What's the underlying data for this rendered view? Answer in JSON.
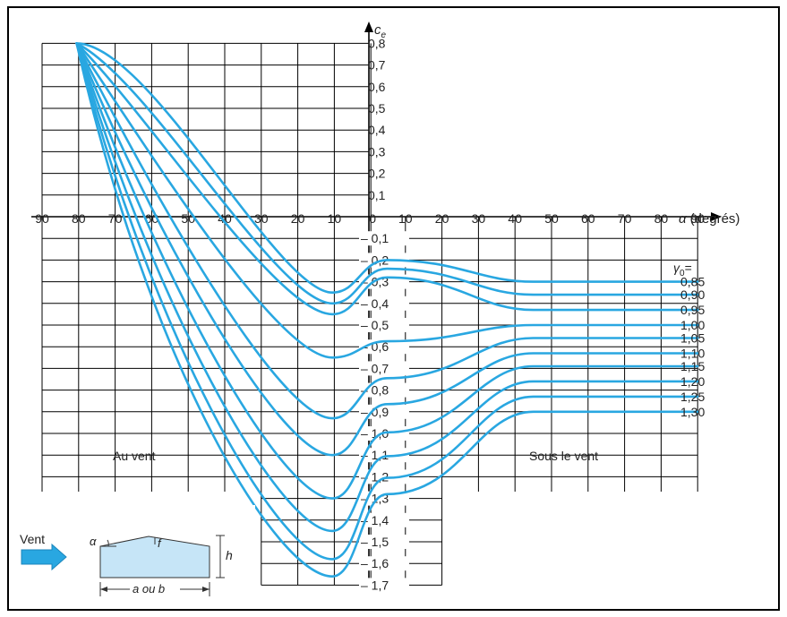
{
  "chart_data": {
    "type": "line",
    "title": "",
    "xlabel": "α (degrés)",
    "ylabel": "ce",
    "ylabel_main": "c",
    "ylabel_sub": "e",
    "xlabel_symbol": "α",
    "xlabel_unit": "(degrés)",
    "left_x_ticks": [
      "90",
      "80",
      "70",
      "60",
      "50",
      "40",
      "30",
      "20",
      "10",
      "0"
    ],
    "right_x_ticks": [
      "10",
      "20",
      "30",
      "40",
      "50",
      "60",
      "70",
      "80",
      "90"
    ],
    "pos_y_ticks": [
      "0,8",
      "0,7",
      "0,6",
      "0,5",
      "0,4",
      "0,3",
      "0,2",
      "0,1"
    ],
    "neg_y_ticks": [
      "– 0,1",
      "– 0,2",
      "– 0,3",
      "– 0,4",
      "– 0,5",
      "– 0,6",
      "– 0,7",
      "– 0,8",
      "– 0,9",
      "– 1,0",
      "– 1,1",
      "– 1,2",
      "– 1,3",
      "– 1,4",
      "– 1,5",
      "– 1,6",
      "– 1,7"
    ],
    "ylim": [
      -1.7,
      0.8
    ],
    "grid": true,
    "legend_title": "γ0 =",
    "legend_title_symbol": "γ",
    "legend_title_sub": "0",
    "legend_title_eq": "=",
    "au_vent_label": "Au vent",
    "sous_le_vent_label": "Sous le vent",
    "line_color": "#29a7e1",
    "series": [
      {
        "name": "0,85",
        "windward_min": -0.35,
        "leeward_plateau": -0.3
      },
      {
        "name": "0,90",
        "windward_min": -0.4,
        "leeward_plateau": -0.36
      },
      {
        "name": "0,95",
        "windward_min": -0.45,
        "leeward_plateau": -0.43
      },
      {
        "name": "1,00",
        "windward_min": -0.65,
        "leeward_plateau": -0.5
      },
      {
        "name": "1,05",
        "windward_min": -0.93,
        "leeward_plateau": -0.56
      },
      {
        "name": "1,10",
        "windward_min": -1.1,
        "leeward_plateau": -0.63
      },
      {
        "name": "1,15",
        "windward_min": -1.3,
        "leeward_plateau": -0.69
      },
      {
        "name": "1,20",
        "windward_min": -1.45,
        "leeward_plateau": -0.76
      },
      {
        "name": "1,25",
        "windward_min": -1.58,
        "leeward_plateau": -0.83
      },
      {
        "name": "1,30",
        "windward_min": -1.66,
        "leeward_plateau": -0.9
      }
    ]
  },
  "inset": {
    "vent_label": "Vent",
    "alpha_label": "α",
    "f_label": "f",
    "h_label": "h",
    "dim_label": "a ou b"
  }
}
